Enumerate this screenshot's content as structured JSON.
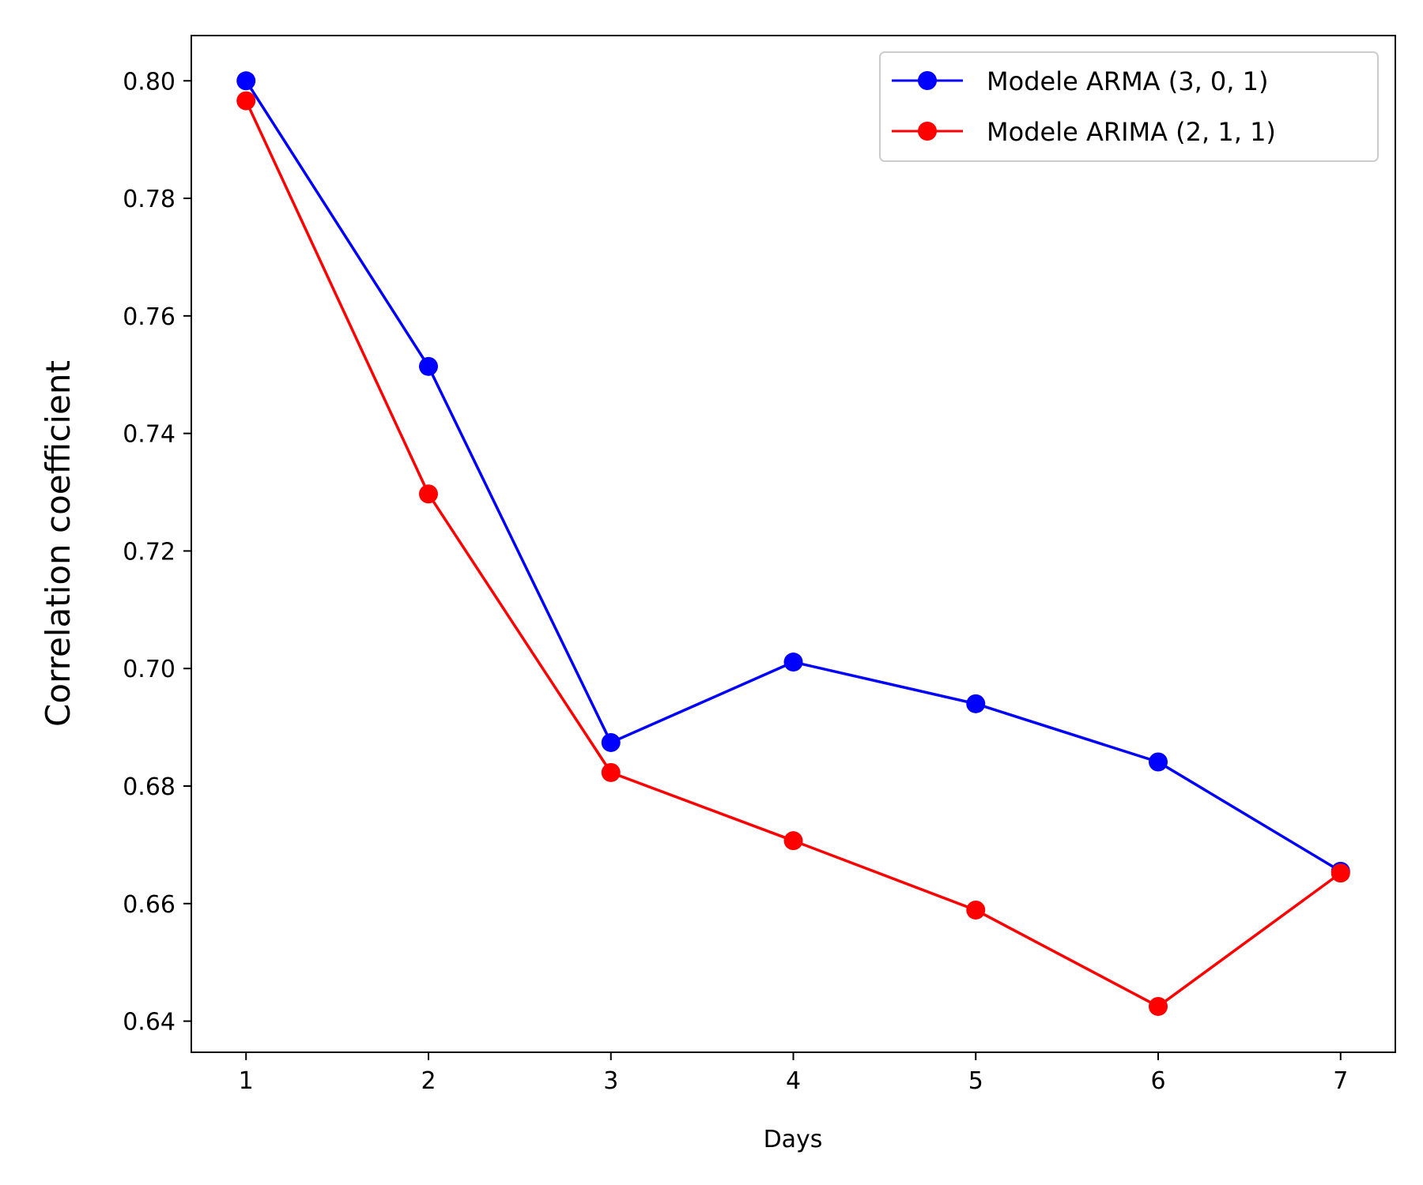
{
  "chart_data": {
    "type": "line",
    "title": "",
    "xlabel": "Days",
    "ylabel": "Correlation coefficient",
    "x": [
      1,
      2,
      3,
      4,
      5,
      6,
      7
    ],
    "xticks": [
      "1",
      "2",
      "3",
      "4",
      "5",
      "6",
      "7"
    ],
    "yticks": [
      "0.64",
      "0.66",
      "0.68",
      "0.70",
      "0.72",
      "0.74",
      "0.76",
      "0.78",
      "0.80"
    ],
    "xlim": [
      0.7,
      7.3
    ],
    "ylim": [
      0.6347,
      0.8077
    ],
    "grid": false,
    "legend_position": "top-right",
    "series": [
      {
        "name": "Modele ARMA (3, 0, 1)",
        "color": "#0000ff",
        "marker": "circle",
        "values": [
          0.8,
          0.7514,
          0.6874,
          0.7011,
          0.694,
          0.6841,
          0.6655
        ]
      },
      {
        "name": "Modele ARIMA (2, 1, 1)",
        "color": "#ff0000",
        "marker": "circle",
        "values": [
          0.7966,
          0.7297,
          0.6823,
          0.6707,
          0.6589,
          0.6425,
          0.6652
        ]
      }
    ]
  }
}
